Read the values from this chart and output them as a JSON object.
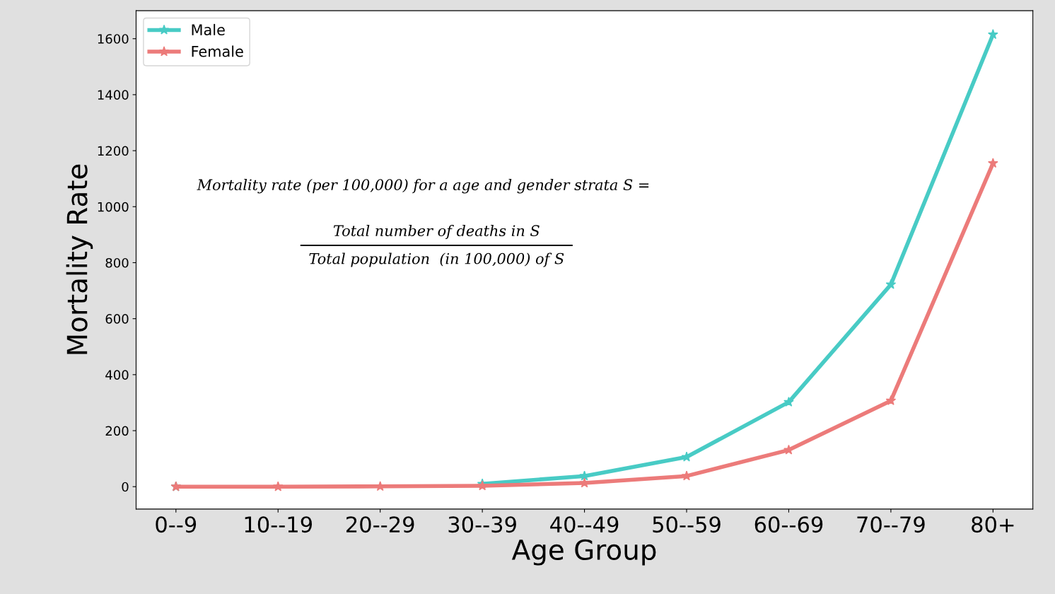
{
  "chart_data": {
    "type": "line",
    "xlabel": "Age Group",
    "ylabel": "Mortality Rate",
    "categories": [
      "0--9",
      "10--19",
      "20--29",
      "30--39",
      "40--49",
      "50--59",
      "60--69",
      "70--79",
      "80+"
    ],
    "series": [
      {
        "name": "Male",
        "color": "#48cbc5",
        "values": [
          0,
          null,
          null,
          10,
          38,
          106,
          302,
          722,
          1615
        ]
      },
      {
        "name": "Female",
        "color": "#ec7b7a",
        "values": [
          0,
          0,
          1,
          3,
          13,
          38,
          131,
          307,
          1155
        ]
      }
    ],
    "ylim": [
      -80,
      1700
    ],
    "yticks": [
      0,
      200,
      400,
      600,
      800,
      1000,
      1200,
      1400,
      1600
    ],
    "annotations": [
      "Mortality rate (per 100,000) for a age and gender strata S =",
      "Total number of deaths in S",
      "Total population  (in 100,000) of S"
    ],
    "marker": "star",
    "line_style": "solid",
    "legend": "top left",
    "grid": false
  }
}
